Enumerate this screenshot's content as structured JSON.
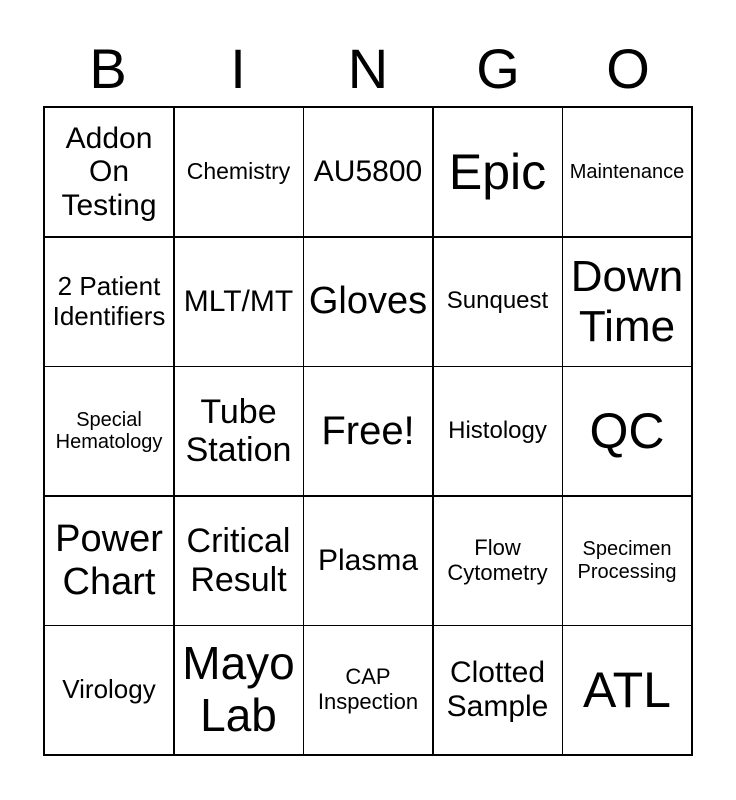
{
  "theme": {
    "ink": "#000000",
    "paper": "#ffffff"
  },
  "title": {
    "letters": [
      "B",
      "I",
      "N",
      "G",
      "O"
    ]
  },
  "card": {
    "free_space_index": 12,
    "cells": [
      {
        "text": "Addon On Testing"
      },
      {
        "text": "Chemistry"
      },
      {
        "text": "AU5800"
      },
      {
        "text": "Epic"
      },
      {
        "text": "Maintenance"
      },
      {
        "text": "2 Patient Identifiers"
      },
      {
        "text": "MLT/MT"
      },
      {
        "text": "Gloves"
      },
      {
        "text": "Sunquest"
      },
      {
        "text": "Down Time"
      },
      {
        "text": "Special Hematology"
      },
      {
        "text": "Tube Station"
      },
      {
        "text": "Free!",
        "free": true
      },
      {
        "text": "Histology"
      },
      {
        "text": "QC"
      },
      {
        "text": "Power Chart"
      },
      {
        "text": "Critical Result"
      },
      {
        "text": "Plasma"
      },
      {
        "text": "Flow Cytometry"
      },
      {
        "text": "Specimen Processing"
      },
      {
        "text": "Virology"
      },
      {
        "text": "Mayo Lab"
      },
      {
        "text": "CAP Inspection"
      },
      {
        "text": "Clotted Sample"
      },
      {
        "text": "ATL"
      }
    ]
  }
}
